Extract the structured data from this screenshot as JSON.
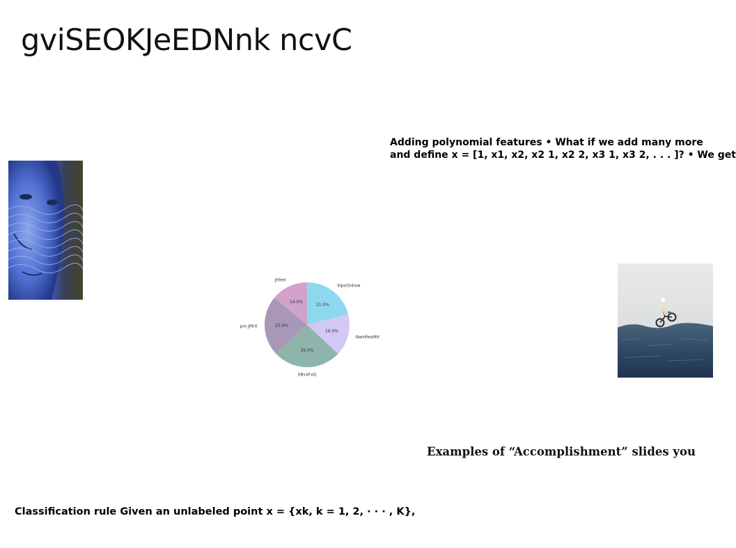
{
  "slide": {
    "title": "gviSEOKJeEDNnk ncvC",
    "paragraph_top": {
      "line1": "Adding polynomial features • What if we add many more",
      "line2": "and define x = [1, x1, x2, x2 1, x2 2, x3 1, x3 2, . . . ]? • We get"
    },
    "paragraph_mid": "Examples of “Accomplishment” slides you",
    "paragraph_bottom": "Classification rule Given an unlabeled point x = {xk, k = 1, 2, · · · , K},"
  },
  "images": {
    "face_photo": "face-with-blue-light-lines",
    "bike_photo": "cyclist-jumping-over-field"
  },
  "chart_data": {
    "type": "pie",
    "start_angle_deg": 90,
    "direction": "clockwise",
    "slices": [
      {
        "label": "klpoOnksw",
        "value": 21.0,
        "color": "#8ed8ef"
      },
      {
        "label": "IAwHfwsMH",
        "value": 16.0,
        "color": "#d3c8f3"
      },
      {
        "label": "hBvxFxQ",
        "value": 26.0,
        "color": "#8db5ab"
      },
      {
        "label": "pm JMrX",
        "value": 23.0,
        "color": "#a997b7"
      },
      {
        "label": "JhfeH",
        "value": 14.0,
        "color": "#d1a3cb"
      }
    ],
    "value_format": "%"
  }
}
